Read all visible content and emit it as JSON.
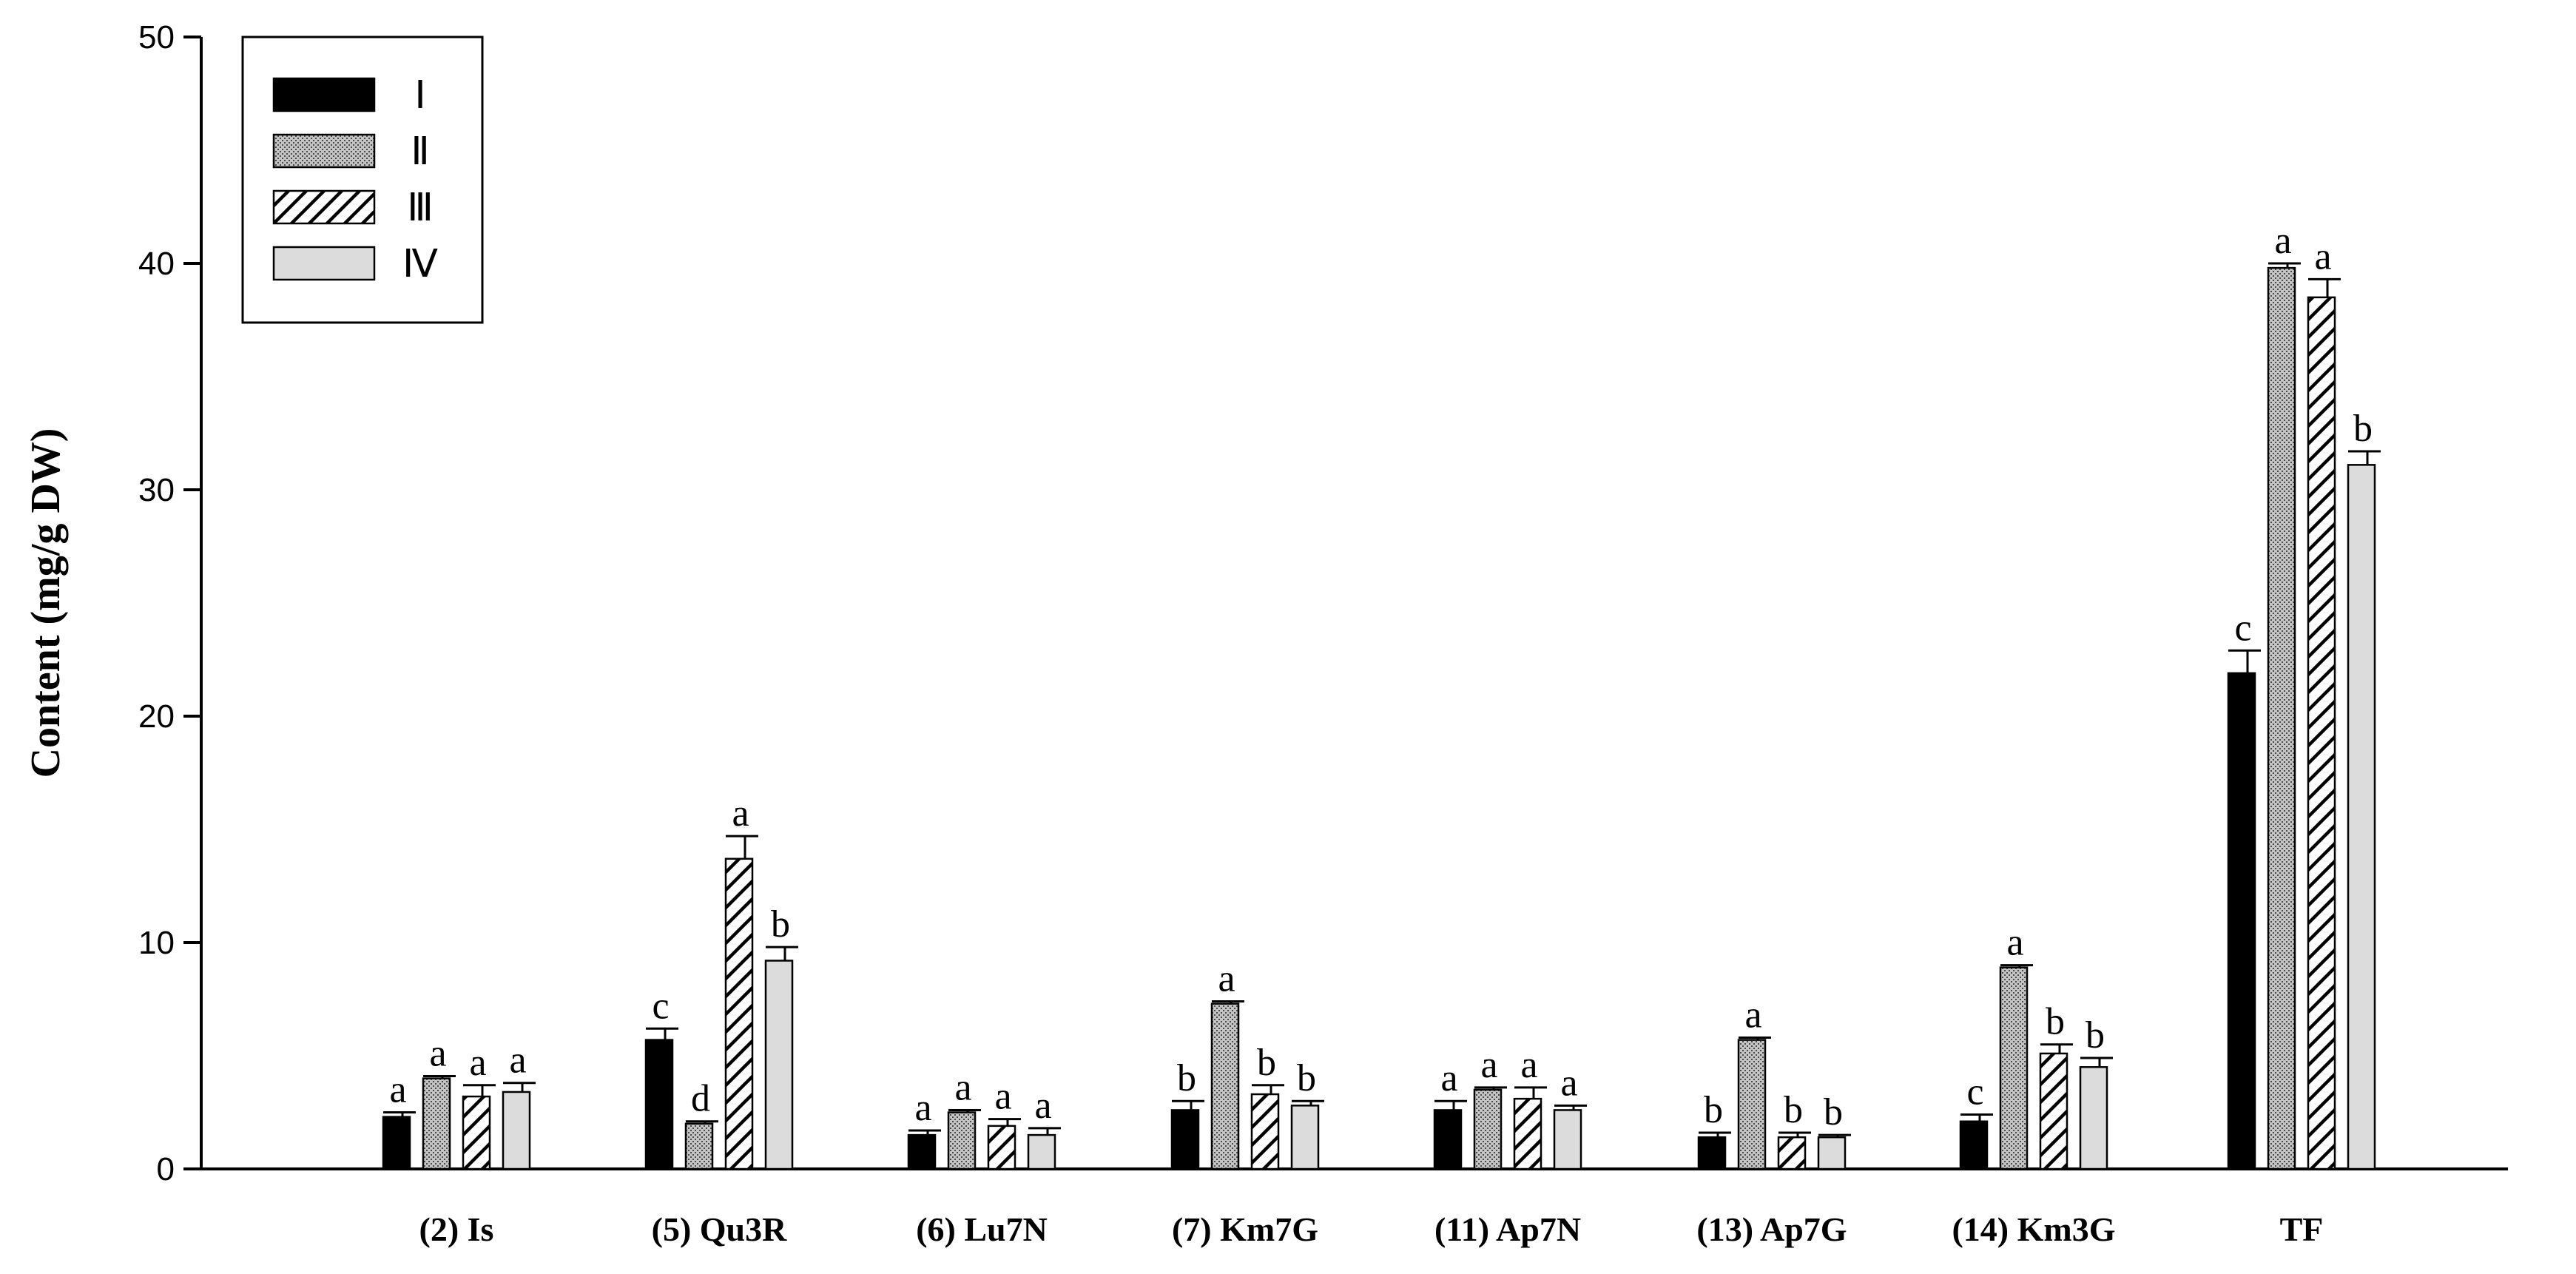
{
  "chart_data": {
    "type": "bar",
    "title": "",
    "xlabel": "",
    "ylabel": "Content (mg/g DW)",
    "ylim": [
      0,
      50
    ],
    "yticks": [
      "0",
      "10",
      "20",
      "30",
      "40",
      "50"
    ],
    "grid": false,
    "legend_position": "top-left",
    "categories": [
      "(2) Is",
      "(5) Qu3R",
      "(6) Lu7N",
      "(7) Km7G",
      "(11) Ap7N",
      "(13) Ap7G",
      "(14) Km3G",
      "TF"
    ],
    "series": [
      {
        "name": "Ⅰ",
        "fill": "solid-black",
        "values": [
          2.3,
          5.7,
          1.5,
          2.6,
          2.6,
          1.4,
          2.1,
          21.9
        ],
        "errors": [
          0.2,
          0.5,
          0.2,
          0.4,
          0.4,
          0.2,
          0.3,
          1.0
        ],
        "letters": [
          "a",
          "c",
          "a",
          "b",
          "a",
          "b",
          "c",
          "c"
        ]
      },
      {
        "name": "Ⅱ",
        "fill": "dotted-gray",
        "values": [
          4.0,
          2.0,
          2.5,
          7.3,
          3.5,
          5.7,
          8.9,
          39.8
        ],
        "errors": [
          0.1,
          0.1,
          0.1,
          0.1,
          0.1,
          0.1,
          0.1,
          0.2
        ],
        "letters": [
          "a",
          "d",
          "a",
          "a",
          "a",
          "a",
          "a",
          "a"
        ]
      },
      {
        "name": "Ⅲ",
        "fill": "diagonal-hatch",
        "values": [
          3.2,
          13.7,
          1.9,
          3.3,
          3.1,
          1.4,
          5.1,
          38.5
        ],
        "errors": [
          0.5,
          1.0,
          0.3,
          0.4,
          0.5,
          0.2,
          0.4,
          0.8
        ],
        "letters": [
          "a",
          "a",
          "a",
          "b",
          "a",
          "b",
          "b",
          "a"
        ]
      },
      {
        "name": "Ⅳ",
        "fill": "light-gray",
        "values": [
          3.4,
          9.2,
          1.5,
          2.8,
          2.6,
          1.4,
          4.5,
          31.1
        ],
        "errors": [
          0.4,
          0.6,
          0.3,
          0.2,
          0.2,
          0.1,
          0.4,
          0.6
        ],
        "letters": [
          "a",
          "b",
          "a",
          "b",
          "a",
          "b",
          "b",
          "b"
        ]
      }
    ]
  }
}
